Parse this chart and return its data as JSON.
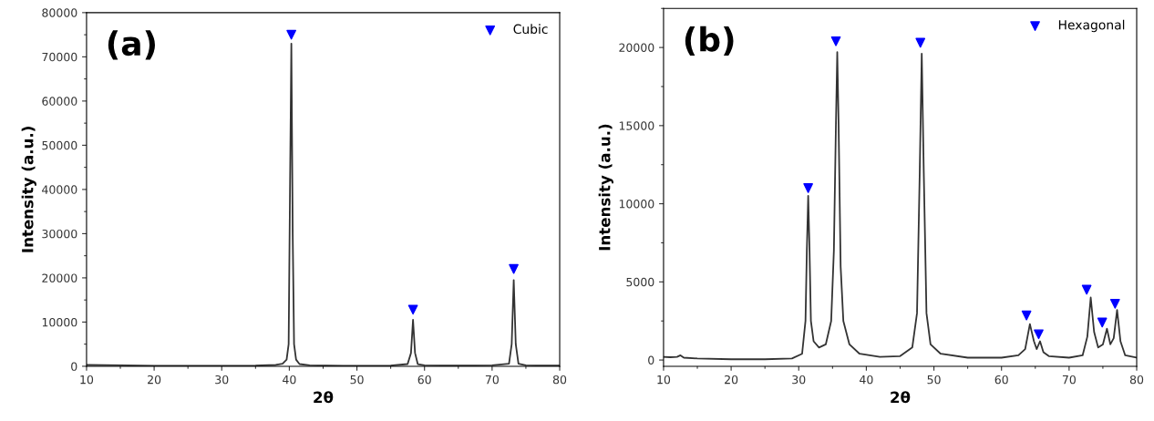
{
  "chart_data": [
    {
      "type": "line",
      "xlabel": "2θ",
      "ylabel": "Intensity (a.u.)",
      "annotations": [
        "(a)"
      ],
      "xlim": [
        10,
        80
      ],
      "xticks": [
        10,
        20,
        30,
        40,
        50,
        60,
        70,
        80
      ],
      "ylim": [
        0,
        80000
      ],
      "yticks": [
        0,
        10000,
        20000,
        30000,
        40000,
        50000,
        60000,
        70000,
        80000
      ],
      "grid": false,
      "legend": "top right",
      "series": [
        {
          "color": "#333333",
          "marker": "none",
          "x": [
            10,
            15,
            20,
            25,
            30,
            35,
            38,
            39,
            39.6,
            39.9,
            40.1,
            40.3,
            40.5,
            40.7,
            41,
            41.5,
            43,
            48,
            55,
            57.5,
            58,
            58.3,
            58.6,
            59,
            60,
            65,
            70,
            72.5,
            72.9,
            73.2,
            73.5,
            73.9,
            75,
            78,
            80
          ],
          "values": [
            300,
            200,
            100,
            100,
            100,
            150,
            300,
            600,
            1500,
            5000,
            40000,
            73000,
            30000,
            5000,
            1500,
            500,
            200,
            100,
            150,
            500,
            3000,
            10500,
            3000,
            500,
            200,
            150,
            200,
            600,
            5000,
            19500,
            5000,
            600,
            200,
            150,
            150
          ]
        },
        {
          "type": "scatter",
          "name": "Cubic",
          "color": "#0000ff",
          "marker": "triangle",
          "x": [
            40.3,
            58.3,
            73.2
          ],
          "values": [
            75000,
            12800,
            22000
          ]
        }
      ]
    },
    {
      "type": "line",
      "xlabel": "2θ",
      "ylabel": "Intensity (a.u.)",
      "annotations": [
        "(b)"
      ],
      "xlim": [
        10,
        80
      ],
      "xticks": [
        10,
        20,
        30,
        40,
        50,
        60,
        70,
        80
      ],
      "ylim": [
        -400,
        22500
      ],
      "yticks": [
        0,
        5000,
        10000,
        15000,
        20000
      ],
      "grid": false,
      "legend": "top right",
      "series": [
        {
          "color": "#333333",
          "marker": "none",
          "x": [
            10,
            11,
            12,
            12.5,
            13,
            15,
            20,
            25,
            29,
            30.5,
            31,
            31.2,
            31.4,
            31.6,
            31.8,
            32.2,
            33,
            34,
            34.8,
            35.2,
            35.5,
            35.7,
            35.9,
            36.2,
            36.6,
            37.5,
            39,
            42,
            45,
            46.8,
            47.5,
            47.9,
            48.2,
            48.5,
            48.9,
            49.5,
            51,
            55,
            60,
            62.5,
            63.5,
            64.2,
            64.8,
            65.2,
            65.7,
            66.2,
            67,
            70,
            72,
            72.7,
            73.2,
            73.7,
            74.3,
            75,
            75.6,
            76.1,
            76.6,
            77.1,
            77.6,
            78.3,
            80
          ],
          "values": [
            200,
            180,
            200,
            300,
            150,
            100,
            50,
            50,
            100,
            400,
            2500,
            7000,
            10500,
            7000,
            2500,
            1200,
            800,
            1000,
            2500,
            7000,
            15000,
            19700,
            15000,
            6000,
            2500,
            1000,
            400,
            200,
            250,
            800,
            3000,
            12000,
            19600,
            12000,
            3000,
            1000,
            400,
            150,
            150,
            300,
            700,
            2300,
            1200,
            700,
            1200,
            500,
            250,
            150,
            300,
            1500,
            4000,
            1800,
            800,
            1000,
            2000,
            1000,
            1400,
            3200,
            1200,
            300,
            150
          ]
        },
        {
          "type": "scatter",
          "name": "Hexagonal",
          "color": "#0000ff",
          "marker": "triangle",
          "x": [
            31.4,
            35.5,
            48.0,
            63.7,
            65.5,
            72.6,
            74.9,
            76.8
          ],
          "values": [
            11000,
            20400,
            20300,
            2850,
            1650,
            4500,
            2400,
            3600
          ]
        }
      ]
    }
  ]
}
